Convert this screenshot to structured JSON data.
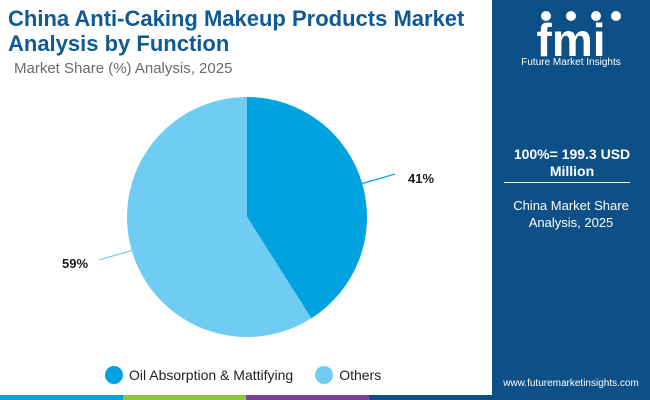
{
  "chart_data": {
    "type": "pie",
    "title": "China Anti-Caking Makeup Products Market Analysis by Function",
    "subtitle": "Market Share (%) Analysis, 2025",
    "slices": [
      {
        "name": "Oil Absorption & Mattifying",
        "value": 41,
        "label": "41%",
        "color": "#00a3df"
      },
      {
        "name": "Others",
        "value": 59,
        "label": "59%",
        "color": "#6fcdf3"
      }
    ],
    "legend_placement": "bottom"
  },
  "side_panel": {
    "logo_text": "fmi",
    "tagline": "Future Market Insights",
    "total": "100%= 199.3 USD Million",
    "region": "China Market Share Analysis, 2025",
    "website": "www.futuremarketinsights.com",
    "background": "#0d4f87"
  },
  "bottom_bar_colors": [
    "#00a3df",
    "#8cc63f",
    "#7b3f98",
    "#0d4f87"
  ]
}
